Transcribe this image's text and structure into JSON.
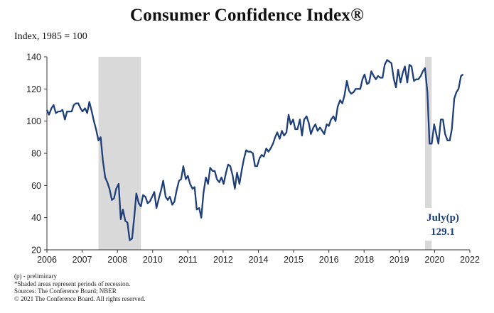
{
  "chart_data": {
    "type": "line",
    "title": "Consumer Confidence Index®",
    "ylabel": "Index, 1985 = 100",
    "ylim": [
      20,
      140
    ],
    "yticks": [
      20,
      40,
      60,
      80,
      100,
      120,
      140
    ],
    "xlim": [
      2006.0,
      2021.75
    ],
    "xtick_labels": [
      "2006",
      "2007",
      "2008",
      "2010",
      "2011",
      "2012",
      "2014",
      "2015",
      "2016",
      "2018",
      "2019",
      "2020",
      "2022"
    ],
    "grid": false,
    "line_color": "#1f3f7a",
    "recession_color": "#d9d9d9",
    "recessions": [
      [
        2007.92,
        2009.5
      ],
      [
        2020.08,
        2020.33
      ]
    ],
    "series": [
      {
        "values": [
          [
            2006.0,
            107
          ],
          [
            2006.08,
            104
          ],
          [
            2006.17,
            108
          ],
          [
            2006.25,
            110
          ],
          [
            2006.33,
            105
          ],
          [
            2006.42,
            106
          ],
          [
            2006.5,
            106
          ],
          [
            2006.58,
            107
          ],
          [
            2006.67,
            101
          ],
          [
            2006.75,
            106
          ],
          [
            2006.83,
            106
          ],
          [
            2006.92,
            106
          ],
          [
            2007.0,
            110
          ],
          [
            2007.08,
            111
          ],
          [
            2007.17,
            111
          ],
          [
            2007.25,
            108
          ],
          [
            2007.33,
            106
          ],
          [
            2007.42,
            108
          ],
          [
            2007.5,
            105
          ],
          [
            2007.58,
            112
          ],
          [
            2007.67,
            106
          ],
          [
            2007.75,
            100
          ],
          [
            2007.83,
            95
          ],
          [
            2007.92,
            88
          ],
          [
            2008.0,
            90
          ],
          [
            2008.08,
            76
          ],
          [
            2008.17,
            65
          ],
          [
            2008.25,
            62
          ],
          [
            2008.33,
            58
          ],
          [
            2008.42,
            51
          ],
          [
            2008.5,
            52
          ],
          [
            2008.58,
            58
          ],
          [
            2008.67,
            61
          ],
          [
            2008.75,
            39
          ],
          [
            2008.83,
            45
          ],
          [
            2008.92,
            38
          ],
          [
            2009.0,
            37
          ],
          [
            2009.08,
            26
          ],
          [
            2009.17,
            27
          ],
          [
            2009.25,
            40
          ],
          [
            2009.33,
            55
          ],
          [
            2009.42,
            49
          ],
          [
            2009.5,
            47
          ],
          [
            2009.58,
            54
          ],
          [
            2009.67,
            53
          ],
          [
            2009.75,
            49
          ],
          [
            2009.83,
            50
          ],
          [
            2009.92,
            53
          ],
          [
            2010.0,
            56
          ],
          [
            2010.08,
            46
          ],
          [
            2010.17,
            52
          ],
          [
            2010.25,
            57
          ],
          [
            2010.33,
            63
          ],
          [
            2010.42,
            53
          ],
          [
            2010.5,
            51
          ],
          [
            2010.58,
            53
          ],
          [
            2010.67,
            48
          ],
          [
            2010.75,
            50
          ],
          [
            2010.83,
            57
          ],
          [
            2010.92,
            63
          ],
          [
            2011.0,
            64
          ],
          [
            2011.08,
            72
          ],
          [
            2011.17,
            64
          ],
          [
            2011.25,
            66
          ],
          [
            2011.33,
            61
          ],
          [
            2011.42,
            58
          ],
          [
            2011.5,
            59
          ],
          [
            2011.58,
            45
          ],
          [
            2011.67,
            46
          ],
          [
            2011.75,
            40
          ],
          [
            2011.83,
            55
          ],
          [
            2011.92,
            65
          ],
          [
            2012.0,
            61
          ],
          [
            2012.08,
            71
          ],
          [
            2012.17,
            69
          ],
          [
            2012.25,
            69
          ],
          [
            2012.33,
            64
          ],
          [
            2012.42,
            62
          ],
          [
            2012.5,
            65
          ],
          [
            2012.58,
            61
          ],
          [
            2012.67,
            68
          ],
          [
            2012.75,
            73
          ],
          [
            2012.83,
            72
          ],
          [
            2012.92,
            66
          ],
          [
            2013.0,
            58
          ],
          [
            2013.08,
            68
          ],
          [
            2013.17,
            61
          ],
          [
            2013.25,
            69
          ],
          [
            2013.33,
            76
          ],
          [
            2013.42,
            82
          ],
          [
            2013.5,
            81
          ],
          [
            2013.58,
            81
          ],
          [
            2013.67,
            80
          ],
          [
            2013.75,
            72
          ],
          [
            2013.83,
            72
          ],
          [
            2013.92,
            77
          ],
          [
            2014.0,
            79
          ],
          [
            2014.08,
            78
          ],
          [
            2014.17,
            83
          ],
          [
            2014.25,
            81
          ],
          [
            2014.33,
            83
          ],
          [
            2014.42,
            86
          ],
          [
            2014.5,
            90
          ],
          [
            2014.58,
            93
          ],
          [
            2014.67,
            89
          ],
          [
            2014.75,
            94
          ],
          [
            2014.83,
            91
          ],
          [
            2014.92,
            93
          ],
          [
            2015.0,
            104
          ],
          [
            2015.08,
            98
          ],
          [
            2015.17,
            101
          ],
          [
            2015.25,
            95
          ],
          [
            2015.33,
            95
          ],
          [
            2015.42,
            101
          ],
          [
            2015.5,
            91
          ],
          [
            2015.58,
            101
          ],
          [
            2015.67,
            103
          ],
          [
            2015.75,
            99
          ],
          [
            2015.83,
            92
          ],
          [
            2015.92,
            96
          ],
          [
            2016.0,
            98
          ],
          [
            2016.08,
            94
          ],
          [
            2016.17,
            96
          ],
          [
            2016.25,
            94
          ],
          [
            2016.33,
            92
          ],
          [
            2016.42,
            98
          ],
          [
            2016.5,
            97
          ],
          [
            2016.58,
            101
          ],
          [
            2016.67,
            103
          ],
          [
            2016.75,
            100
          ],
          [
            2016.83,
            109
          ],
          [
            2016.92,
            113
          ],
          [
            2017.0,
            111
          ],
          [
            2017.08,
            116
          ],
          [
            2017.17,
            125
          ],
          [
            2017.25,
            119
          ],
          [
            2017.33,
            117
          ],
          [
            2017.42,
            118
          ],
          [
            2017.5,
            120
          ],
          [
            2017.58,
            120
          ],
          [
            2017.67,
            120
          ],
          [
            2017.75,
            126
          ],
          [
            2017.83,
            129
          ],
          [
            2017.92,
            123
          ],
          [
            2018.0,
            124
          ],
          [
            2018.08,
            131
          ],
          [
            2018.17,
            128
          ],
          [
            2018.25,
            126
          ],
          [
            2018.33,
            128
          ],
          [
            2018.42,
            127
          ],
          [
            2018.5,
            127
          ],
          [
            2018.58,
            135
          ],
          [
            2018.67,
            138
          ],
          [
            2018.75,
            137
          ],
          [
            2018.83,
            136
          ],
          [
            2018.92,
            126
          ],
          [
            2019.0,
            121
          ],
          [
            2019.08,
            132
          ],
          [
            2019.17,
            124
          ],
          [
            2019.25,
            130
          ],
          [
            2019.33,
            134
          ],
          [
            2019.42,
            124
          ],
          [
            2019.5,
            135
          ],
          [
            2019.58,
            134
          ],
          [
            2019.67,
            125
          ],
          [
            2019.75,
            126
          ],
          [
            2019.83,
            126
          ],
          [
            2019.92,
            128
          ],
          [
            2020.0,
            131
          ],
          [
            2020.08,
            133
          ],
          [
            2020.17,
            118
          ],
          [
            2020.25,
            86
          ],
          [
            2020.33,
            86
          ],
          [
            2020.42,
            98
          ],
          [
            2020.5,
            92
          ],
          [
            2020.58,
            86
          ],
          [
            2020.67,
            101
          ],
          [
            2020.75,
            101
          ],
          [
            2020.83,
            92
          ],
          [
            2020.92,
            88
          ],
          [
            2021.0,
            88
          ],
          [
            2021.08,
            95
          ],
          [
            2021.17,
            114
          ],
          [
            2021.25,
            118
          ],
          [
            2021.33,
            120
          ],
          [
            2021.42,
            128
          ],
          [
            2021.5,
            129.1
          ]
        ]
      }
    ],
    "annotations": [
      {
        "line1": "July(p)",
        "line2": "129.1"
      }
    ]
  },
  "footnotes": [
    "(p) - preliminary",
    "*Shaded areas represent periods of recession.",
    "Sources: The Conference Board; NBER",
    "© 2021 The Conference Board. All rights reserved."
  ]
}
